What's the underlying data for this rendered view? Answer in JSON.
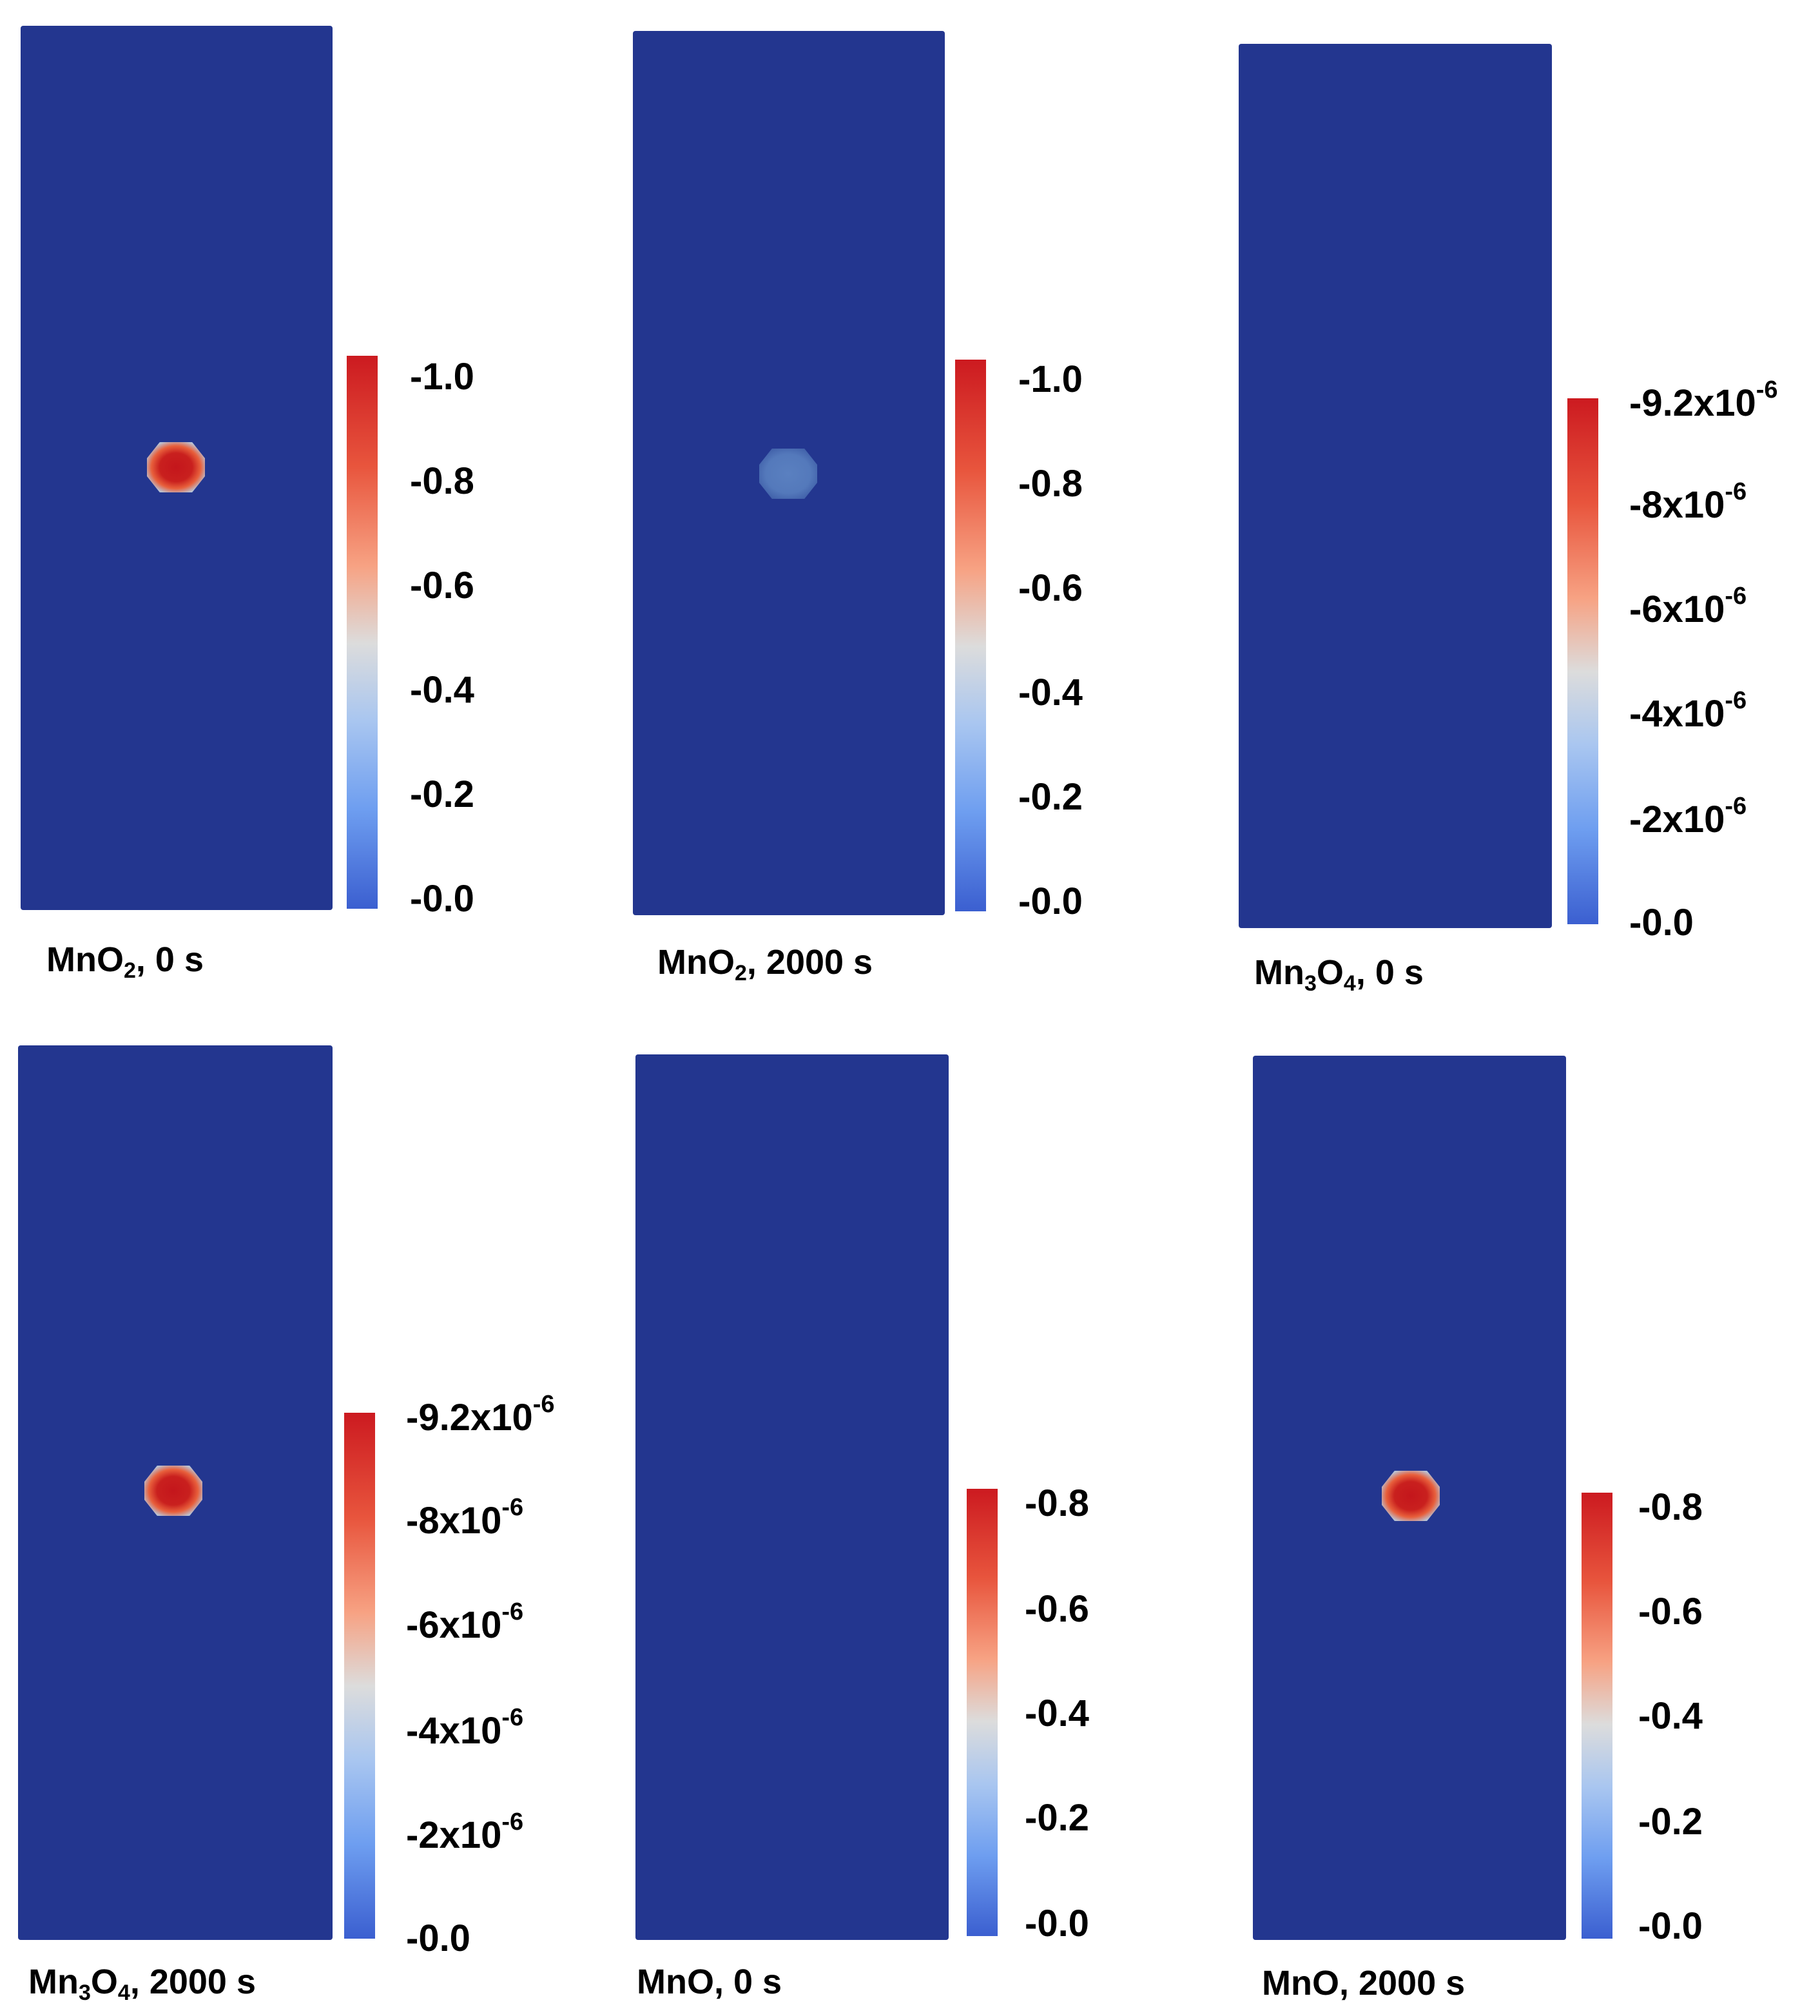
{
  "figure": {
    "panels": [
      {
        "caption": {
          "species": "MnO",
          "subscript": "2",
          "time": ", 0 s"
        },
        "blob": "hot",
        "colorbar_ticks": [
          {
            "mantissa": "-1.0",
            "exponent": ""
          },
          {
            "mantissa": "-0.8",
            "exponent": ""
          },
          {
            "mantissa": "-0.6",
            "exponent": ""
          },
          {
            "mantissa": "-0.4",
            "exponent": ""
          },
          {
            "mantissa": "-0.2",
            "exponent": ""
          },
          {
            "mantissa": "-0.0",
            "exponent": ""
          }
        ]
      },
      {
        "caption": {
          "species": "MnO",
          "subscript": "2",
          "time": ", 2000 s"
        },
        "blob": "faint",
        "colorbar_ticks": [
          {
            "mantissa": "-1.0",
            "exponent": ""
          },
          {
            "mantissa": "-0.8",
            "exponent": ""
          },
          {
            "mantissa": "-0.6",
            "exponent": ""
          },
          {
            "mantissa": "-0.4",
            "exponent": ""
          },
          {
            "mantissa": "-0.2",
            "exponent": ""
          },
          {
            "mantissa": "-0.0",
            "exponent": ""
          }
        ]
      },
      {
        "caption": {
          "species": "Mn",
          "subscript": "3",
          "species2": "O",
          "subscript2": "4",
          "time": ", 0 s"
        },
        "blob": "none",
        "colorbar_ticks": [
          {
            "mantissa": "-9.2x10",
            "exponent": "-6"
          },
          {
            "mantissa": "-8x10",
            "exponent": "-6"
          },
          {
            "mantissa": "-6x10",
            "exponent": "-6"
          },
          {
            "mantissa": "-4x10",
            "exponent": "-6"
          },
          {
            "mantissa": "-2x10",
            "exponent": "-6"
          },
          {
            "mantissa": "-0.0",
            "exponent": ""
          }
        ]
      },
      {
        "caption": {
          "species": "Mn",
          "subscript": "3",
          "species2": "O",
          "subscript2": "4",
          "time": ", 2000 s"
        },
        "blob": "hot",
        "colorbar_ticks": [
          {
            "mantissa": "-9.2x10",
            "exponent": "-6"
          },
          {
            "mantissa": "-8x10",
            "exponent": "-6"
          },
          {
            "mantissa": "-6x10",
            "exponent": "-6"
          },
          {
            "mantissa": "-4x10",
            "exponent": "-6"
          },
          {
            "mantissa": "-2x10",
            "exponent": "-6"
          },
          {
            "mantissa": "-0.0",
            "exponent": ""
          }
        ]
      },
      {
        "caption": {
          "species": "MnO",
          "subscript": "",
          "time": ", 0 s"
        },
        "blob": "none",
        "colorbar_ticks": [
          {
            "mantissa": "-0.8",
            "exponent": ""
          },
          {
            "mantissa": "-0.6",
            "exponent": ""
          },
          {
            "mantissa": "-0.4",
            "exponent": ""
          },
          {
            "mantissa": "-0.2",
            "exponent": ""
          },
          {
            "mantissa": "-0.0",
            "exponent": ""
          }
        ]
      },
      {
        "caption": {
          "species": "MnO",
          "subscript": "",
          "time": ", 2000 s"
        },
        "blob": "hot",
        "colorbar_ticks": [
          {
            "mantissa": "-0.8",
            "exponent": ""
          },
          {
            "mantissa": "-0.6",
            "exponent": ""
          },
          {
            "mantissa": "-0.4",
            "exponent": ""
          },
          {
            "mantissa": "-0.2",
            "exponent": ""
          },
          {
            "mantissa": "-0.0",
            "exponent": ""
          }
        ]
      }
    ]
  }
}
